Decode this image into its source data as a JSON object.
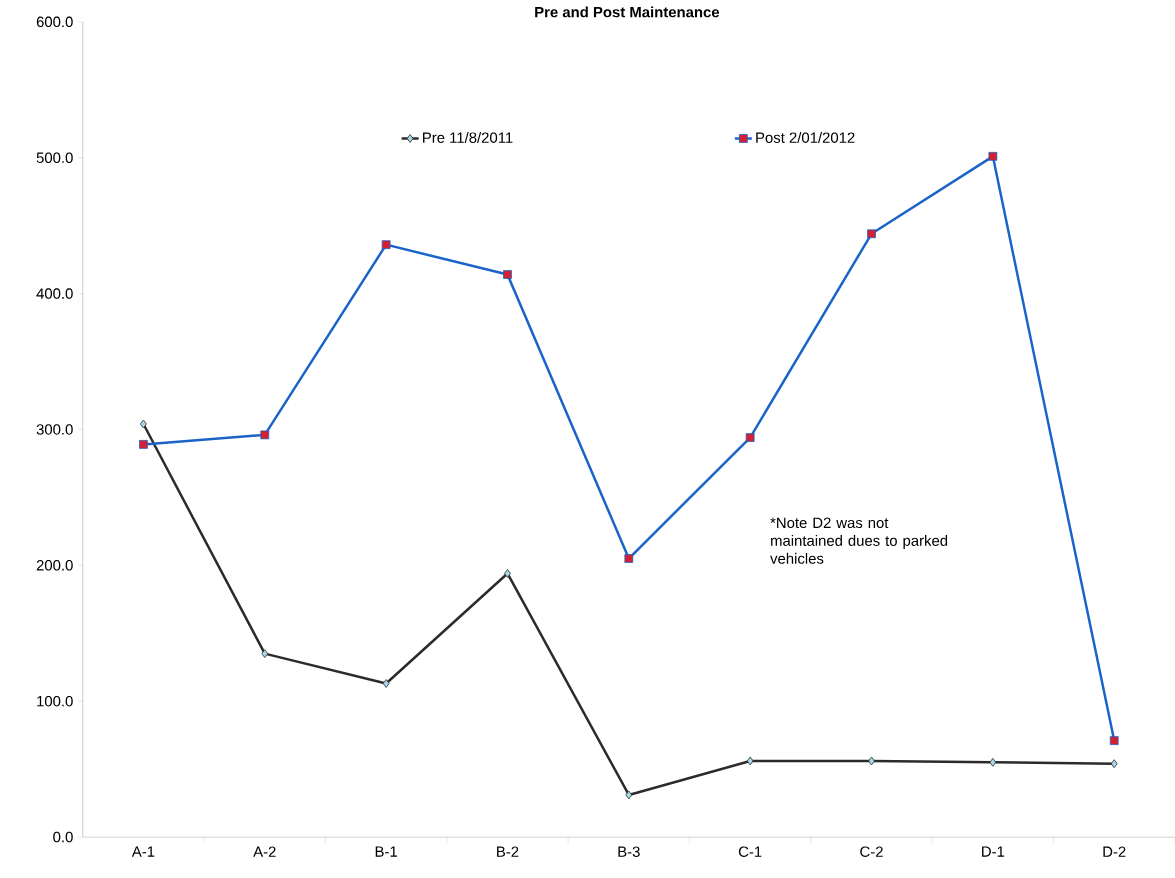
{
  "chart_data": {
    "type": "line",
    "title": "Pre and Post Maintenance",
    "categories": [
      "A-1",
      "A-2",
      "B-1",
      "B-2",
      "B-3",
      "C-1",
      "C-2",
      "D-1",
      "D-2"
    ],
    "series": [
      {
        "name": "Pre 11/8/2011",
        "color": "#2b2b2b",
        "marker": "diamond",
        "colors": [
          "#a6d8ea",
          "#a6d8ea",
          "#a6d8ea",
          "#a6d8ea",
          "#a6d8ea",
          "#a6d8ea",
          "#a6d8ea",
          "#a6d8ea",
          "#a6d8ea"
        ],
        "values": [
          304,
          135,
          113,
          194,
          31,
          56,
          56,
          55,
          54
        ]
      },
      {
        "name": "Post 2/01/2012",
        "color": "#1a63c8",
        "marker": "square",
        "colors": [
          "#d42030",
          "#d42030",
          "#d42030",
          "#d42030",
          "#d42030",
          "#d42030",
          "#d42030",
          "#d42030",
          "#d42030"
        ],
        "values": [
          289,
          296,
          436,
          414,
          205,
          294,
          444,
          501,
          71
        ]
      }
    ],
    "ylim": [
      0,
      600
    ],
    "yticks": [
      {
        "value": 0,
        "label": "0.0"
      },
      {
        "value": 100,
        "label": "100.0"
      },
      {
        "value": 200,
        "label": "200.0"
      },
      {
        "value": 300,
        "label": "300.0"
      },
      {
        "value": 400,
        "label": "400.0"
      },
      {
        "value": 500,
        "label": "500.0"
      },
      {
        "value": 600,
        "label": "600.0"
      }
    ],
    "grid": false,
    "legend": "top",
    "annotations": [
      "*Note D2 was not maintained dues to parked vehicles"
    ]
  }
}
